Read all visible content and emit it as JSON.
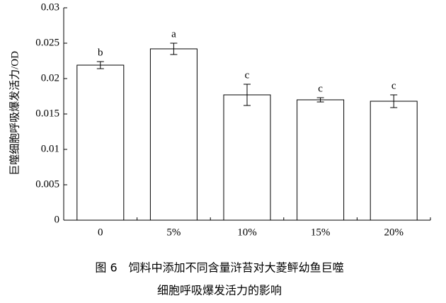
{
  "chart_data": {
    "type": "bar",
    "y_label": "巨噬细胞呼吸爆发活力/OD",
    "categories": [
      "0",
      "5%",
      "10%",
      "15%",
      "20%"
    ],
    "values": [
      0.0219,
      0.0242,
      0.0177,
      0.017,
      0.0168
    ],
    "errors": [
      0.0005,
      0.0008,
      0.0015,
      0.0003,
      0.0009
    ],
    "letters": [
      "b",
      "a",
      "c",
      "c",
      "c"
    ],
    "color": "#ffffff",
    "ylim": [
      0,
      0.03
    ],
    "yticks": [
      0,
      0.005,
      0.01,
      0.015,
      0.02,
      0.025,
      0.03
    ],
    "caption": [
      "图 6　饲料中添加不同含量浒苔对大菱鲆幼鱼巨噬",
      "细胞呼吸爆发活力的影响"
    ]
  }
}
